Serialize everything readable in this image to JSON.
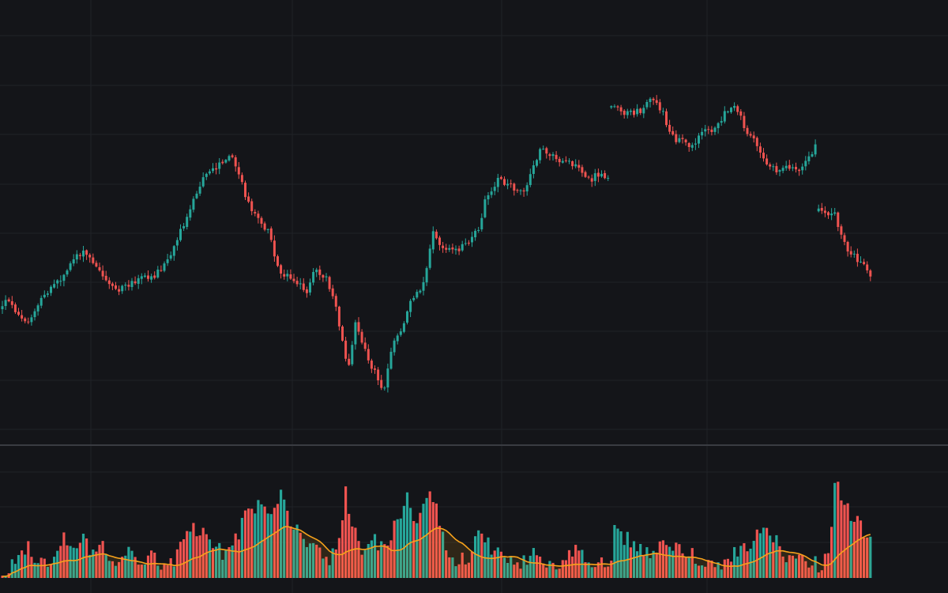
{
  "theme": {
    "background": "#141519",
    "grid": "#202227",
    "separator": "#3a3c42",
    "up": "#26a69a",
    "down": "#ef5350",
    "ma": "#f7a21b"
  },
  "chart_data": [
    {
      "type": "candlestick",
      "name": "price-pane",
      "title": "",
      "xlabel": "",
      "ylabel": "",
      "grid": true,
      "segments": [
        {
          "points": 188,
          "start": 392,
          "anchors": [
            [
              0,
              392
            ],
            [
              8,
              375
            ],
            [
              20,
              398
            ],
            [
              40,
              405
            ],
            [
              55,
              372
            ],
            [
              78,
              352
            ],
            [
              95,
              323
            ],
            [
              108,
              320
            ],
            [
              130,
              350
            ],
            [
              150,
              368
            ],
            [
              175,
              352
            ],
            [
              195,
              348
            ],
            [
              215,
              325
            ],
            [
              240,
              265
            ],
            [
              255,
              228
            ],
            [
              275,
              210
            ],
            [
              292,
              193
            ],
            [
              305,
              230
            ],
            [
              318,
              265
            ],
            [
              338,
              290
            ],
            [
              355,
              345
            ],
            [
              372,
              352
            ],
            [
              388,
              368
            ],
            [
              400,
              340
            ],
            [
              415,
              355
            ],
            [
              425,
              385
            ],
            [
              440,
              470
            ],
            [
              450,
              410
            ],
            [
              462,
              445
            ],
            [
              478,
              478
            ],
            [
              485,
              495
            ],
            [
              497,
              435
            ],
            [
              508,
              418
            ],
            [
              520,
              380
            ],
            [
              535,
              365
            ],
            [
              548,
              293
            ],
            [
              560,
              313
            ],
            [
              575,
              318
            ],
            [
              590,
              310
            ],
            [
              605,
              292
            ],
            [
              615,
              250
            ],
            [
              630,
              228
            ],
            [
              650,
              238
            ],
            [
              660,
              245
            ],
            [
              672,
              220
            ],
            [
              686,
              185
            ],
            [
              700,
              198
            ],
            [
              715,
              205
            ],
            [
              730,
              212
            ],
            [
              745,
              228
            ],
            [
              760,
              218
            ],
            [
              774,
              232
            ]
          ]
        },
        {
          "points": 64,
          "start": 135,
          "anchors": [
            [
              782,
              135
            ],
            [
              795,
              145
            ],
            [
              810,
              140
            ],
            [
              825,
              125
            ],
            [
              838,
              140
            ],
            [
              848,
              172
            ],
            [
              862,
              178
            ],
            [
              876,
              185
            ],
            [
              890,
              162
            ],
            [
              905,
              165
            ],
            [
              920,
              140
            ],
            [
              932,
              138
            ],
            [
              945,
              165
            ],
            [
              958,
              180
            ],
            [
              970,
              205
            ],
            [
              985,
              218
            ],
            [
              1000,
              212
            ],
            [
              1012,
              215
            ],
            [
              1025,
              195
            ],
            [
              1040,
              178
            ],
            [
              1048,
              168
            ]
          ]
        },
        {
          "points": 17,
          "start": 268,
          "anchors": [
            [
              1056,
              268
            ],
            [
              1062,
              295
            ],
            [
              1072,
              315
            ],
            [
              1085,
              328
            ],
            [
              1098,
              342
            ],
            [
              1110,
              362
            ]
          ]
        }
      ]
    },
    {
      "type": "bar",
      "name": "volume-pane",
      "title": "",
      "xlabel": "",
      "ylabel": "",
      "moving_average": {
        "visible": true
      },
      "bars": 269,
      "anchors": [
        [
          0,
          720
        ],
        [
          10,
          718
        ],
        [
          20,
          710
        ],
        [
          35,
          685
        ],
        [
          45,
          712
        ],
        [
          55,
          716
        ],
        [
          70,
          705
        ],
        [
          80,
          675
        ],
        [
          95,
          690
        ],
        [
          105,
          683
        ],
        [
          115,
          700
        ],
        [
          130,
          690
        ],
        [
          145,
          708
        ],
        [
          160,
          700
        ],
        [
          175,
          712
        ],
        [
          190,
          705
        ],
        [
          205,
          718
        ],
        [
          220,
          710
        ],
        [
          230,
          680
        ],
        [
          240,
          665
        ],
        [
          255,
          670
        ],
        [
          270,
          695
        ],
        [
          290,
          700
        ],
        [
          305,
          665
        ],
        [
          320,
          640
        ],
        [
          340,
          645
        ],
        [
          355,
          625
        ],
        [
          365,
          660
        ],
        [
          378,
          660
        ],
        [
          392,
          690
        ],
        [
          405,
          700
        ],
        [
          420,
          705
        ],
        [
          430,
          690
        ],
        [
          437,
          622
        ],
        [
          448,
          670
        ],
        [
          460,
          700
        ],
        [
          470,
          682
        ],
        [
          485,
          690
        ],
        [
          500,
          665
        ],
        [
          515,
          630
        ],
        [
          530,
          665
        ],
        [
          545,
          612
        ],
        [
          555,
          655
        ],
        [
          565,
          700
        ],
        [
          580,
          712
        ],
        [
          595,
          705
        ],
        [
          605,
          680
        ],
        [
          620,
          690
        ],
        [
          635,
          700
        ],
        [
          650,
          712
        ],
        [
          665,
          708
        ],
        [
          680,
          702
        ],
        [
          700,
          715
        ],
        [
          715,
          712
        ],
        [
          730,
          690
        ],
        [
          745,
          705
        ],
        [
          760,
          712
        ],
        [
          772,
          715
        ],
        [
          778,
          660
        ],
        [
          790,
          680
        ],
        [
          805,
          690
        ],
        [
          825,
          698
        ],
        [
          840,
          680
        ],
        [
          855,
          690
        ],
        [
          870,
          695
        ],
        [
          885,
          712
        ],
        [
          905,
          715
        ],
        [
          918,
          710
        ],
        [
          935,
          695
        ],
        [
          950,
          685
        ],
        [
          965,
          670
        ],
        [
          980,
          685
        ],
        [
          995,
          700
        ],
        [
          1010,
          712
        ],
        [
          1025,
          710
        ],
        [
          1040,
          718
        ],
        [
          1048,
          705
        ],
        [
          1056,
          620
        ],
        [
          1064,
          620
        ],
        [
          1072,
          640
        ],
        [
          1085,
          660
        ],
        [
          1098,
          680
        ],
        [
          1110,
          683
        ]
      ]
    }
  ]
}
